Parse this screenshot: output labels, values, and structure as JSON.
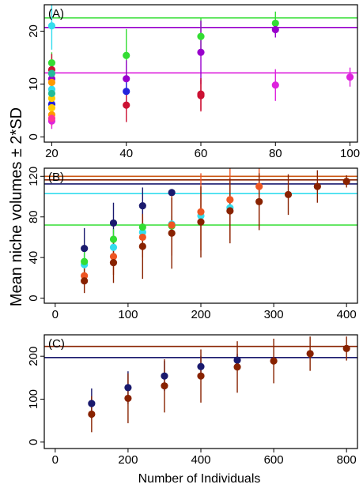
{
  "figure": {
    "ylabel": "Mean niche volumes ± 2*SD",
    "xlabel": "Number of Individuals"
  },
  "chart_data": [
    {
      "panel": "(A)",
      "type": "scatter",
      "xlim": [
        18,
        102
      ],
      "ylim": [
        -1,
        25
      ],
      "xticks": [
        20,
        40,
        60,
        80,
        100
      ],
      "yticks": [
        0,
        10,
        20
      ],
      "grid": false,
      "hlines": [
        {
          "y": 22.5,
          "color": "#33dd33"
        },
        {
          "y": 20.7,
          "color": "#9900cc"
        },
        {
          "y": 12.1,
          "color": "#dd22dd"
        }
      ],
      "series": [
        {
          "color": "#33dd33",
          "points": [
            {
              "x": 20,
              "y": 14.0,
              "sd": 2.0
            },
            {
              "x": 40,
              "y": 15.4,
              "sd": 5.0
            },
            {
              "x": 60,
              "y": 19.0,
              "sd": 3.5
            },
            {
              "x": 80,
              "y": 21.5,
              "sd": 2.2
            }
          ]
        },
        {
          "color": "#9900cc",
          "points": [
            {
              "x": 20,
              "y": 11.0,
              "sd": 3.0
            },
            {
              "x": 40,
              "y": 11.0,
              "sd": 3.5
            },
            {
              "x": 60,
              "y": 16.0,
              "sd": 6.0
            },
            {
              "x": 80,
              "y": 20.3,
              "sd": 1.5
            }
          ]
        },
        {
          "color": "#dd22dd",
          "points": [
            {
              "x": 20,
              "y": 3.0,
              "sd": 1.5
            },
            {
              "x": 80,
              "y": 9.8,
              "sd": 3.0
            },
            {
              "x": 100,
              "y": 11.3,
              "sd": 1.8
            }
          ]
        },
        {
          "color": "#2222dd",
          "points": [
            {
              "x": 20,
              "y": 6.2,
              "sd": 2.5
            },
            {
              "x": 40,
              "y": 8.6,
              "sd": 3.0
            }
          ]
        },
        {
          "color": "#cc1133",
          "points": [
            {
              "x": 20,
              "y": 12.7,
              "sd": 3.0
            },
            {
              "x": 40,
              "y": 6.0,
              "sd": 3.2
            },
            {
              "x": 60,
              "y": 7.8,
              "sd": 3.0
            },
            {
              "x": 60,
              "y": 8.1,
              "sd": 3.0
            }
          ]
        },
        {
          "color": "#33ddee",
          "points": [
            {
              "x": 20,
              "y": 21.0,
              "sd": 4.5
            },
            {
              "x": 20,
              "y": 9.0,
              "sd": 3.5
            }
          ]
        },
        {
          "color": "#ff9900",
          "points": [
            {
              "x": 20,
              "y": 10.3,
              "sd": 2.5
            },
            {
              "x": 20,
              "y": 4.2,
              "sd": 2.0
            }
          ]
        },
        {
          "color": "#ffcc00",
          "points": [
            {
              "x": 20,
              "y": 7.3,
              "sd": 2.0
            },
            {
              "x": 20,
              "y": 5.5,
              "sd": 2.0
            }
          ]
        },
        {
          "color": "#ff3399",
          "points": [
            {
              "x": 20,
              "y": 3.5,
              "sd": 1.5
            }
          ]
        },
        {
          "color": "#22bb99",
          "points": [
            {
              "x": 20,
              "y": 8.2,
              "sd": 2.5
            },
            {
              "x": 20,
              "y": 12.0,
              "sd": 2.5
            }
          ]
        }
      ]
    },
    {
      "panel": "(B)",
      "type": "scatter",
      "xlim": [
        -15,
        415
      ],
      "ylim": [
        -5,
        128
      ],
      "xticks": [
        0,
        100,
        200,
        300,
        400
      ],
      "yticks": [
        0,
        40,
        80,
        120
      ],
      "grid": false,
      "hlines": [
        {
          "y": 120,
          "color": "#cc5511"
        },
        {
          "y": 116.5,
          "color": "#882200"
        },
        {
          "y": 112.5,
          "color": "#1a1a6e"
        },
        {
          "y": 103,
          "color": "#33ddee"
        },
        {
          "y": 72,
          "color": "#33dd33"
        }
      ],
      "series": [
        {
          "color": "#1a1a6e",
          "points": [
            {
              "x": 40,
              "y": 49,
              "sd": 20
            },
            {
              "x": 80,
              "y": 74,
              "sd": 20
            },
            {
              "x": 120,
              "y": 91,
              "sd": 18
            },
            {
              "x": 160,
              "y": 104,
              "sd": 3
            }
          ]
        },
        {
          "color": "#33ddee",
          "points": [
            {
              "x": 40,
              "y": 33,
              "sd": 10
            },
            {
              "x": 80,
              "y": 50,
              "sd": 10
            },
            {
              "x": 120,
              "y": 65,
              "sd": 10
            },
            {
              "x": 160,
              "y": 73,
              "sd": 8
            },
            {
              "x": 200,
              "y": 81,
              "sd": 6
            },
            {
              "x": 240,
              "y": 89,
              "sd": 6
            }
          ]
        },
        {
          "color": "#33dd33",
          "points": [
            {
              "x": 40,
              "y": 36,
              "sd": 12
            },
            {
              "x": 80,
              "y": 58,
              "sd": 10
            },
            {
              "x": 120,
              "y": 70,
              "sd": 8
            },
            {
              "x": 160,
              "y": 71,
              "sd": 6
            }
          ]
        },
        {
          "color": "#ee5522",
          "points": [
            {
              "x": 40,
              "y": 22,
              "sd": 8
            },
            {
              "x": 80,
              "y": 41,
              "sd": 18
            },
            {
              "x": 120,
              "y": 60,
              "sd": 20
            },
            {
              "x": 160,
              "y": 72,
              "sd": 30
            },
            {
              "x": 200,
              "y": 85,
              "sd": 38
            },
            {
              "x": 240,
              "y": 97,
              "sd": 40
            },
            {
              "x": 280,
              "y": 110,
              "sd": 40
            }
          ]
        },
        {
          "color": "#882200",
          "points": [
            {
              "x": 40,
              "y": 17,
              "sd": 12
            },
            {
              "x": 80,
              "y": 35,
              "sd": 20
            },
            {
              "x": 120,
              "y": 51,
              "sd": 32
            },
            {
              "x": 160,
              "y": 64,
              "sd": 35
            },
            {
              "x": 200,
              "y": 75,
              "sd": 35
            },
            {
              "x": 240,
              "y": 86,
              "sd": 32
            },
            {
              "x": 280,
              "y": 95,
              "sd": 28
            },
            {
              "x": 320,
              "y": 102,
              "sd": 20
            },
            {
              "x": 360,
              "y": 110,
              "sd": 16
            },
            {
              "x": 400,
              "y": 115,
              "sd": 6
            }
          ]
        }
      ]
    },
    {
      "panel": "(C)",
      "type": "scatter",
      "xlim": [
        -30,
        830
      ],
      "ylim": [
        -15,
        250
      ],
      "xticks": [
        0,
        200,
        400,
        600,
        800
      ],
      "yticks": [
        0,
        100,
        200
      ],
      "grid": false,
      "hlines": [
        {
          "y": 223,
          "color": "#882200"
        },
        {
          "y": 197,
          "color": "#1a1a6e"
        }
      ],
      "series": [
        {
          "color": "#1a1a6e",
          "points": [
            {
              "x": 100,
              "y": 90,
              "sd": 35
            },
            {
              "x": 200,
              "y": 127,
              "sd": 38
            },
            {
              "x": 300,
              "y": 154,
              "sd": 35
            },
            {
              "x": 400,
              "y": 176,
              "sd": 25
            },
            {
              "x": 500,
              "y": 191,
              "sd": 15
            }
          ]
        },
        {
          "color": "#882200",
          "points": [
            {
              "x": 100,
              "y": 65,
              "sd": 42
            },
            {
              "x": 200,
              "y": 102,
              "sd": 58
            },
            {
              "x": 300,
              "y": 131,
              "sd": 62
            },
            {
              "x": 400,
              "y": 154,
              "sd": 62
            },
            {
              "x": 500,
              "y": 175,
              "sd": 60
            },
            {
              "x": 600,
              "y": 189,
              "sd": 52
            },
            {
              "x": 700,
              "y": 206,
              "sd": 40
            },
            {
              "x": 800,
              "y": 218,
              "sd": 28
            }
          ]
        }
      ]
    }
  ]
}
